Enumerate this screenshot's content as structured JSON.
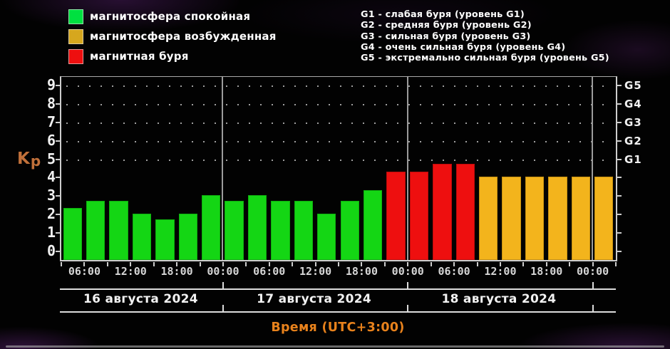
{
  "legend_left": {
    "items": [
      {
        "label": "магнитосфера спокойная",
        "status": "quiet",
        "color": "#00e040"
      },
      {
        "label": "магнитосфера возбужденная",
        "status": "excited",
        "color": "#d6a71e"
      },
      {
        "label": "магнитная буря",
        "status": "storm",
        "color": "#ee0f0f"
      }
    ]
  },
  "legend_right": {
    "items": [
      "G1 - слабая буря (уровень G1)",
      "G2 - средняя буря (уровень G2)",
      "G3 - сильная буря (уровень G3)",
      "G4 - очень сильная буря (уровень G4)",
      "G5 - экстремально сильная буря (уровень G5)"
    ]
  },
  "y_axis": {
    "label": "Kp",
    "label_main": "K",
    "label_sub": "p",
    "ticks": [
      0,
      1,
      2,
      3,
      4,
      5,
      6,
      7,
      8,
      9
    ]
  },
  "right_axis": {
    "labels": [
      {
        "text": "G1",
        "kp": 5
      },
      {
        "text": "G2",
        "kp": 6
      },
      {
        "text": "G3",
        "kp": 7
      },
      {
        "text": "G4",
        "kp": 8
      },
      {
        "text": "G5",
        "kp": 9
      }
    ]
  },
  "x_axis": {
    "title": "Время (UTC+3:00)",
    "tick_labels": [
      "06:00",
      "12:00",
      "18:00",
      "00:00",
      "06:00",
      "12:00",
      "18:00",
      "00:00",
      "06:00",
      "12:00",
      "18:00",
      "00:00"
    ]
  },
  "date_band": {
    "labels": [
      "16 августа 2024",
      "17 августа 2024",
      "18 августа 2024"
    ]
  },
  "chart_data": {
    "type": "bar",
    "ylabel": "Kp",
    "xlabel": "Время (UTC+3:00)",
    "ylim": [
      0,
      9.5
    ],
    "grid": "dotted horizontal gridlines at Kp 5,6,7,8,9",
    "legend_position": "top",
    "bar_interval_hours": 3,
    "first_bar_start": "16 августа 2024 03:00 (UTC+3)",
    "values": [
      2.3,
      2.7,
      2.7,
      2.0,
      1.7,
      2.0,
      3.0,
      2.7,
      3.0,
      2.7,
      2.7,
      2.0,
      2.7,
      3.3,
      4.3,
      4.3,
      4.7,
      4.7,
      4.0,
      4.0,
      4.0,
      4.0,
      4.0,
      4.0
    ],
    "statuses": [
      "quiet",
      "quiet",
      "quiet",
      "quiet",
      "quiet",
      "quiet",
      "quiet",
      "quiet",
      "quiet",
      "quiet",
      "quiet",
      "quiet",
      "quiet",
      "quiet",
      "storm",
      "storm",
      "storm",
      "storm",
      "excited",
      "excited",
      "excited",
      "excited",
      "excited",
      "excited"
    ],
    "status_colors": {
      "quiet": "#14d614",
      "excited": "#f3b41c",
      "storm": "#ee0f0f"
    },
    "day_boundaries_after_bar": [
      7,
      15,
      23
    ],
    "days": [
      "16 августа 2024",
      "17 августа 2024",
      "18 августа 2024"
    ]
  }
}
